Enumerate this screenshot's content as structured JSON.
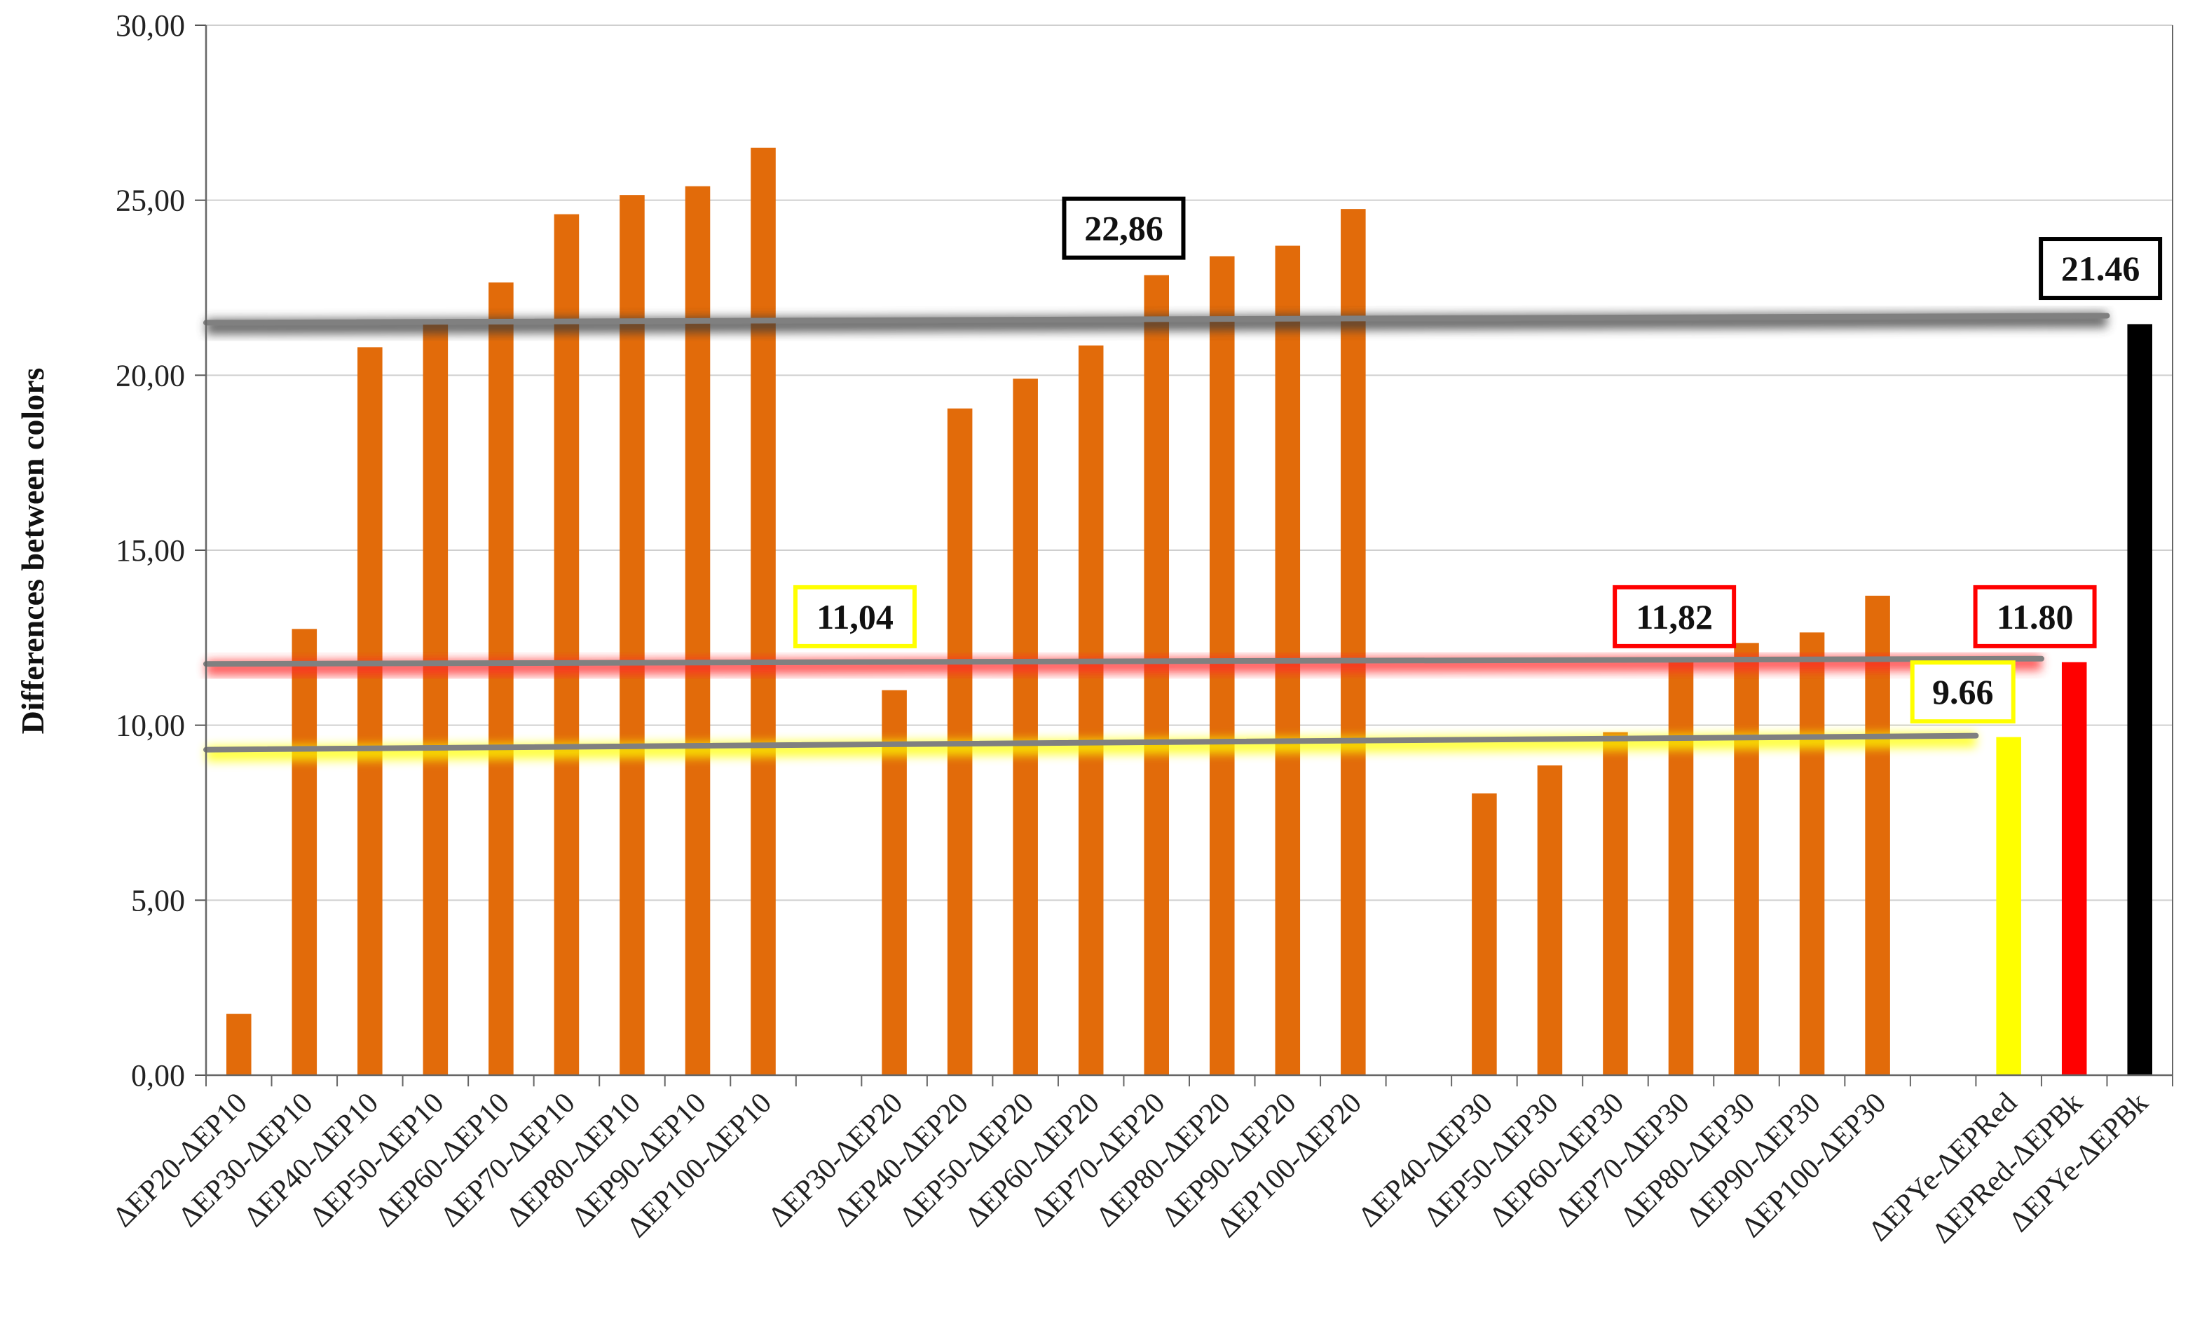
{
  "chart_data": {
    "type": "bar",
    "title": "",
    "xlabel": "",
    "ylabel": "Differences between colors",
    "ylim": [
      0,
      30
    ],
    "y_ticks": [
      "0,00",
      "5,00",
      "10,00",
      "15,00",
      "20,00",
      "25,00",
      "30,00"
    ],
    "grid": true,
    "categories": [
      "ΔEP20-ΔEP10",
      "ΔEP30-ΔEP10",
      "ΔEP40-ΔEP10",
      "ΔEP50-ΔEP10",
      "ΔEP60-ΔEP10",
      "ΔEP70-ΔEP10",
      "ΔEP80-ΔEP10",
      "ΔEP90-ΔEP10",
      "ΔEP100-ΔEP10",
      "",
      "ΔEP30-ΔEP20",
      "ΔEP40-ΔEP20",
      "ΔEP50-ΔEP20",
      "ΔEP60-ΔEP20",
      "ΔEP70-ΔEP20",
      "ΔEP80-ΔEP20",
      "ΔEP90-ΔEP20",
      "ΔEP100-ΔEP20",
      "",
      "ΔEP40-ΔEP30",
      "ΔEP50-ΔEP30",
      "ΔEP60-ΔEP30",
      "ΔEP70-ΔEP30",
      "ΔEP80-ΔEP30",
      "ΔEP90-ΔEP30",
      "ΔEP100-ΔEP30",
      "",
      "ΔEPYe-ΔEPRed",
      "ΔEPRed-ΔEPBk",
      "ΔEPYe-ΔEPBk"
    ],
    "values": [
      1.75,
      12.75,
      20.8,
      21.55,
      22.65,
      24.6,
      25.15,
      25.4,
      26.5,
      null,
      11.0,
      19.05,
      19.9,
      20.85,
      22.86,
      23.4,
      23.7,
      24.75,
      null,
      8.05,
      8.85,
      9.8,
      11.82,
      12.35,
      12.65,
      13.7,
      null,
      9.66,
      11.8,
      21.46
    ],
    "bar_colors": [
      "#e26b0a",
      "#e26b0a",
      "#e26b0a",
      "#e26b0a",
      "#e26b0a",
      "#e26b0a",
      "#e26b0a",
      "#e26b0a",
      "#e26b0a",
      null,
      "#e26b0a",
      "#e26b0a",
      "#e26b0a",
      "#e26b0a",
      "#e26b0a",
      "#e26b0a",
      "#e26b0a",
      "#e26b0a",
      null,
      "#e26b0a",
      "#e26b0a",
      "#e26b0a",
      "#e26b0a",
      "#e26b0a",
      "#e26b0a",
      "#e26b0a",
      null,
      "#ffff00",
      "#ff0000",
      "#000000"
    ],
    "reference_lines": [
      {
        "name": "black-average-line",
        "from": [
          0,
          21.5
        ],
        "to": [
          29,
          21.7
        ],
        "glow": "#3a3a3a"
      },
      {
        "name": "red-average-line",
        "from": [
          0,
          11.75
        ],
        "to": [
          28,
          11.9
        ],
        "glow": "#ff2a2a"
      },
      {
        "name": "yellow-average-line",
        "from": [
          0,
          9.3
        ],
        "to": [
          27,
          9.7
        ],
        "glow": "#ffff00"
      }
    ],
    "annotations": [
      {
        "name": "annotation-22-86",
        "text": "22,86",
        "x": 14,
        "y": 24.2,
        "border": "#000000"
      },
      {
        "name": "annotation-21-46",
        "text": "21.46",
        "x": 28.9,
        "y": 23.05,
        "border": "#000000"
      },
      {
        "name": "annotation-11-04",
        "text": "11,04",
        "x": 9.9,
        "y": 13.1,
        "border": "#ffff00"
      },
      {
        "name": "annotation-11-82",
        "text": "11,82",
        "x": 22.4,
        "y": 13.1,
        "border": "#ff0000"
      },
      {
        "name": "annotation-11-80",
        "text": "11.80",
        "x": 27.9,
        "y": 13.1,
        "border": "#ff0000"
      },
      {
        "name": "annotation-9-66",
        "text": "9.66",
        "x": 26.8,
        "y": 10.95,
        "border": "#ffff00"
      }
    ]
  }
}
